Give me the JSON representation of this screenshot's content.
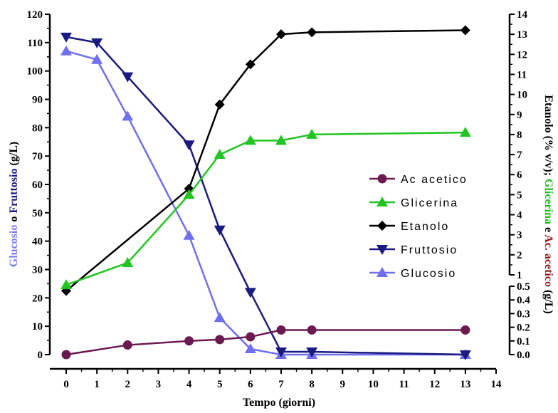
{
  "chart_data": {
    "type": "line",
    "xlabel": "Tempo (giorni)",
    "xlim": [
      0,
      14
    ],
    "xticks": [
      0,
      1,
      2,
      3,
      4,
      5,
      6,
      7,
      8,
      9,
      10,
      11,
      12,
      13,
      14
    ],
    "left_axis": {
      "ylim": [
        0,
        120
      ],
      "ticks": [
        0,
        10,
        20,
        30,
        40,
        50,
        60,
        70,
        80,
        90,
        100,
        110,
        120
      ],
      "label_parts": [
        {
          "text": "Glucosio",
          "color": "#7B7BF0"
        },
        {
          "text": " o ",
          "color": "#000000"
        },
        {
          "text": "Fruttosio",
          "color": "#1A1A80"
        },
        {
          "text": " (g/L)",
          "color": "#000000"
        }
      ]
    },
    "right_upper_axis": {
      "ylim": [
        1,
        14
      ],
      "ticks": [
        1,
        2,
        3,
        4,
        5,
        6,
        7,
        8,
        9,
        10,
        11,
        12,
        13,
        14
      ]
    },
    "right_lower_axis": {
      "ylim": [
        0,
        0.5
      ],
      "ticks": [
        "0.0",
        "0.1",
        "0.2",
        "0.3",
        "0.4",
        "0.5"
      ]
    },
    "right_label_parts": [
      {
        "text": "Etanolo (% v/v); ",
        "color": "#000000"
      },
      {
        "text": "Glicerina",
        "color": "#22BB22"
      },
      {
        "text": " e ",
        "color": "#000000"
      },
      {
        "text": "Ac. acetico",
        "color": "#8B1A1A"
      },
      {
        "text": " (g/L)",
        "color": "#000000"
      }
    ],
    "series": [
      {
        "name": "Ac acetico",
        "color": "#6B1A4F",
        "marker": "circle",
        "axis": "right_lower",
        "x": [
          0,
          2,
          4,
          5,
          6,
          7,
          8,
          13
        ],
        "y": [
          0.0,
          0.07,
          0.1,
          0.11,
          0.13,
          0.18,
          0.18,
          0.18
        ]
      },
      {
        "name": "Glicerina",
        "color": "#22C422",
        "marker": "triangle-up",
        "axis": "right_upper",
        "x": [
          0,
          2,
          4,
          5,
          6,
          7,
          8,
          13
        ],
        "y": [
          0.5,
          1.6,
          5.0,
          7.0,
          7.7,
          7.7,
          8.0,
          8.1
        ]
      },
      {
        "name": "Etanolo",
        "color": "#000000",
        "marker": "diamond",
        "axis": "right_upper",
        "x": [
          0,
          4,
          5,
          6,
          7,
          8,
          13
        ],
        "y": [
          0.2,
          5.3,
          9.5,
          11.5,
          13.0,
          13.1,
          13.2
        ]
      },
      {
        "name": "Fruttosio",
        "color": "#1A1A80",
        "marker": "triangle-down",
        "axis": "left",
        "x": [
          0,
          1,
          2,
          4,
          5,
          6,
          7,
          8,
          13
        ],
        "y": [
          112,
          110,
          98,
          74,
          44,
          22,
          1,
          1,
          0
        ]
      },
      {
        "name": "Glucosio",
        "color": "#7070EE",
        "marker": "triangle-up",
        "axis": "left",
        "x": [
          0,
          1,
          2,
          4,
          5,
          6,
          7,
          8,
          13
        ],
        "y": [
          107,
          104,
          84,
          42,
          13,
          2,
          0,
          0,
          0
        ]
      }
    ],
    "legend": {
      "position": "right-center",
      "order": [
        "Ac acetico",
        "Glicerina",
        "Etanolo",
        "Fruttosio",
        "Glucosio"
      ]
    },
    "grid": false
  }
}
